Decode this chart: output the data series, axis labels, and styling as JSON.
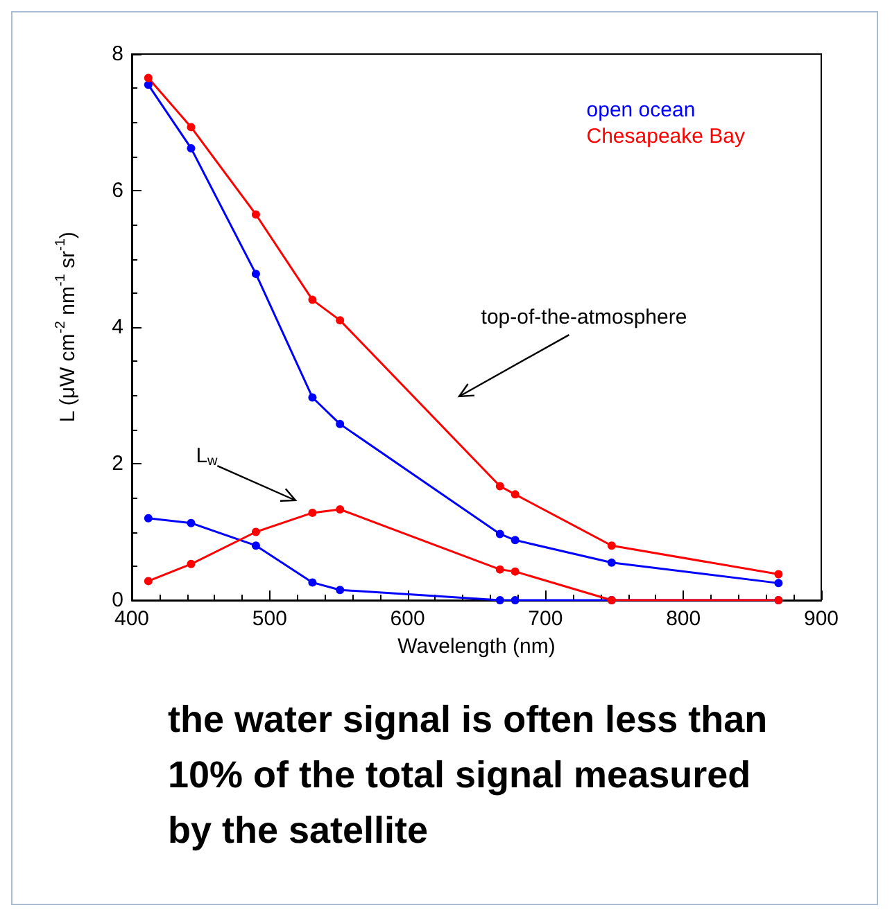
{
  "chart_data": {
    "type": "line",
    "xlabel": "Wavelength (nm)",
    "ylabel": "L (μW cm$^{-2}$ nm$^{-1}$ sr$^{-1}$)",
    "x": [
      412,
      443,
      490,
      531,
      551,
      667,
      678,
      748,
      869
    ],
    "series": [
      {
        "name": "open ocean",
        "color": "#0000ff",
        "values": [
          7.55,
          6.62,
          4.78,
          2.97,
          2.58,
          0.97,
          0.88,
          0.55,
          0.25
        ]
      },
      {
        "name": "Chesapeake Bay",
        "color": "#ff0000",
        "values": [
          7.65,
          6.93,
          5.65,
          4.4,
          4.1,
          1.67,
          1.55,
          0.8,
          0.38
        ]
      },
      {
        "color": "#0000ff",
        "values": [
          1.2,
          1.13,
          0.8,
          0.26,
          0.15,
          0,
          0,
          0,
          0
        ]
      },
      {
        "color": "#ff0000",
        "values": [
          0.28,
          0.53,
          1.0,
          1.28,
          1.33,
          0.45,
          0.42,
          0,
          0
        ]
      }
    ],
    "xlim": [
      400,
      900
    ],
    "xticks": [
      400,
      500,
      600,
      700,
      800,
      900
    ],
    "ylim": [
      0,
      8
    ],
    "yticks": [
      0,
      2,
      4,
      6,
      8
    ],
    "grid": false,
    "legend": "top right",
    "marker": "circle",
    "line_style": "solid",
    "annotations": [
      "top-of-the-atmosphere",
      "L$_{w}$",
      "the water signal is often less than 10% of the total signal measured by the satellite"
    ]
  }
}
